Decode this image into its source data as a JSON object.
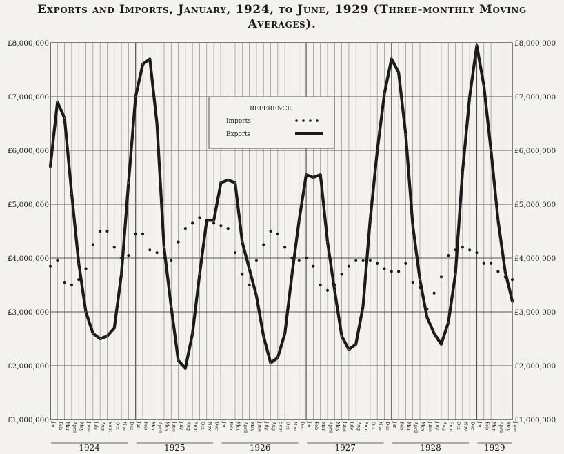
{
  "chart_data": {
    "type": "line",
    "title_line1": "Exports and Imports, January, 1924, to June, 1929 (Three-monthly Moving",
    "title_line2": "Averages).",
    "legend_title": "REFERENCE.",
    "legend_placement": "top-center",
    "grid": true,
    "ylim": [
      1000000,
      8000000
    ],
    "y_ticks": [
      "£1,000,000",
      "£2,000,000",
      "£3,000,000",
      "£4,000,000",
      "£5,000,000",
      "£6,000,000",
      "£7,000,000",
      "£8,000,000"
    ],
    "month_labels": [
      "Jan",
      "Feb",
      "Mar",
      "April",
      "May",
      "June",
      "July",
      "Aug",
      "Sept",
      "Oct",
      "Nov",
      "Dec"
    ],
    "last_year_month_labels": [
      "Jan",
      "Feb",
      "Mar",
      "April",
      "May",
      "June"
    ],
    "years": [
      "1924",
      "1925",
      "1926",
      "1927",
      "1928",
      "1929"
    ],
    "x": [
      "1924-01",
      "1924-02",
      "1924-03",
      "1924-04",
      "1924-05",
      "1924-06",
      "1924-07",
      "1924-08",
      "1924-09",
      "1924-10",
      "1924-11",
      "1924-12",
      "1925-01",
      "1925-02",
      "1925-03",
      "1925-04",
      "1925-05",
      "1925-06",
      "1925-07",
      "1925-08",
      "1925-09",
      "1925-10",
      "1925-11",
      "1925-12",
      "1926-01",
      "1926-02",
      "1926-03",
      "1926-04",
      "1926-05",
      "1926-06",
      "1926-07",
      "1926-08",
      "1926-09",
      "1926-10",
      "1926-11",
      "1926-12",
      "1927-01",
      "1927-02",
      "1927-03",
      "1927-04",
      "1927-05",
      "1927-06",
      "1927-07",
      "1927-08",
      "1927-09",
      "1927-10",
      "1927-11",
      "1927-12",
      "1928-01",
      "1928-02",
      "1928-03",
      "1928-04",
      "1928-05",
      "1928-06",
      "1928-07",
      "1928-08",
      "1928-09",
      "1928-10",
      "1928-11",
      "1928-12",
      "1929-01",
      "1929-02",
      "1929-03",
      "1929-04",
      "1929-05",
      "1929-06"
    ],
    "series": [
      {
        "name": "Imports",
        "style": "dotted",
        "color": "#1b1b1b",
        "values": [
          3850000,
          3950000,
          3550000,
          3500000,
          3600000,
          3800000,
          4250000,
          4500000,
          4500000,
          4200000,
          4000000,
          4050000,
          4450000,
          4450000,
          4150000,
          4100000,
          4000000,
          3950000,
          4300000,
          4550000,
          4650000,
          4750000,
          4700000,
          4650000,
          4600000,
          4550000,
          4100000,
          3700000,
          3500000,
          3950000,
          4250000,
          4500000,
          4450000,
          4200000,
          4000000,
          3950000,
          4000000,
          3850000,
          3500000,
          3400000,
          3500000,
          3700000,
          3850000,
          3950000,
          3950000,
          3950000,
          3900000,
          3800000,
          3750000,
          3750000,
          3900000,
          3550000,
          3450000,
          3050000,
          3350000,
          3650000,
          4050000,
          4150000,
          4200000,
          4150000,
          4100000,
          3900000,
          3900000,
          3750000,
          3650000,
          3600000
        ]
      },
      {
        "name": "Exports",
        "style": "heavy",
        "color": "#1b1b1b",
        "values": [
          5700000,
          6900000,
          6600000,
          5200000,
          3900000,
          3000000,
          2600000,
          2500000,
          2550000,
          2700000,
          3700000,
          5400000,
          7000000,
          7600000,
          7700000,
          6500000,
          4200000,
          3100000,
          2100000,
          1950000,
          2600000,
          3700000,
          4700000,
          4700000,
          5400000,
          5450000,
          5400000,
          4300000,
          3800000,
          3300000,
          2550000,
          2050000,
          2150000,
          2600000,
          3700000,
          4700000,
          5550000,
          5500000,
          5550000,
          4300000,
          3400000,
          2550000,
          2300000,
          2400000,
          3100000,
          4700000,
          6000000,
          7050000,
          7700000,
          7450000,
          6300000,
          4600000,
          3600000,
          2900000,
          2600000,
          2400000,
          2800000,
          3700000,
          5600000,
          7000000,
          7950000,
          7200000,
          6000000,
          4700000,
          3750000,
          3200000
        ]
      }
    ]
  }
}
